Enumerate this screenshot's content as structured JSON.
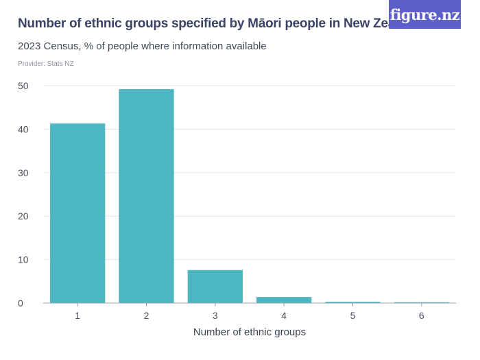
{
  "header": {
    "title": "Number of ethnic groups specified by Māori people in New Zealand",
    "subtitle": "2023 Census, % of people where information available",
    "provider": "Provider: Stats NZ",
    "logo_text": "figure.nz"
  },
  "colors": {
    "bar": "#4db6c3",
    "grid": "#e3e5ea",
    "axis": "#9ea3ad",
    "logo_bg": "#5b5fc7",
    "title": "#3b4366"
  },
  "chart_data": {
    "type": "bar",
    "categories": [
      "1",
      "2",
      "3",
      "4",
      "5",
      "6"
    ],
    "values": [
      41.3,
      49.2,
      7.6,
      1.4,
      0.3,
      0.2
    ],
    "title": "Number of ethnic groups specified by Māori people in New Zealand",
    "xlabel": "Number of ethnic groups",
    "ylabel": "",
    "ylim": [
      0,
      50
    ],
    "yticks": [
      0,
      10,
      20,
      30,
      40,
      50
    ],
    "grid": true,
    "legend": "none"
  }
}
